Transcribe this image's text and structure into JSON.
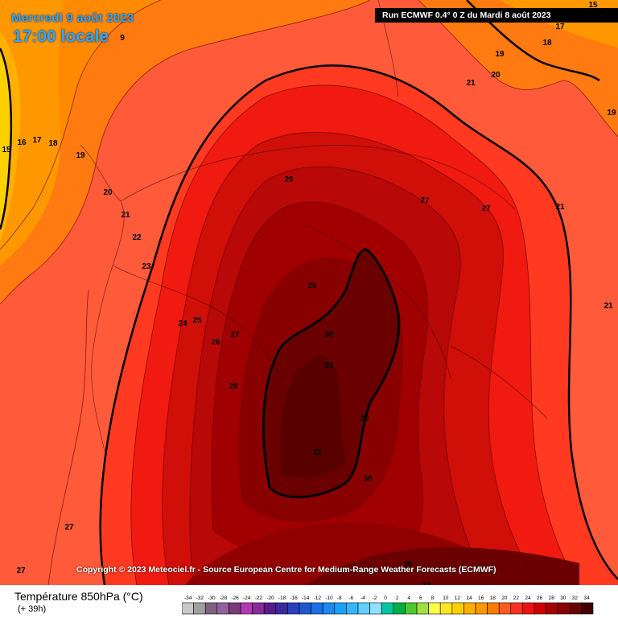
{
  "header": {
    "date": "Mercredi 9 août 2023",
    "time": "17:00 locale",
    "run": "Run ECMWF 0.4° 0 Z du Mardi 8 août 2023"
  },
  "footer": {
    "copyright": "Copyright © 2023 Meteociel.fr - Source European Centre for Medium-Range Weather Forecasts (ECMWF)",
    "parameter": "Température 850hPa (°C)",
    "lead_time": "(+ 39h)"
  },
  "scale": {
    "labels": [
      "-34",
      "-32",
      "-30",
      "-28",
      "-26",
      "-24",
      "-22",
      "-20",
      "-18",
      "-16",
      "-14",
      "-12",
      "-10",
      "-8",
      "-6",
      "-4",
      "-2",
      "0",
      "2",
      "4",
      "6",
      "8",
      "10",
      "12",
      "14",
      "16",
      "18",
      "20",
      "22",
      "24",
      "26",
      "28",
      "30",
      "32",
      "34"
    ],
    "colors": [
      "#c8c8c8",
      "#a0a0a0",
      "#806080",
      "#9060a0",
      "#7a3a7a",
      "#b03ab0",
      "#8a2a9a",
      "#5a1a8a",
      "#3a2aa0",
      "#2a40c0",
      "#1a5ad0",
      "#1a6ee8",
      "#1a8af0",
      "#1aa0f8",
      "#30b8ff",
      "#60d0ff",
      "#90e0ff",
      "#00c8a0",
      "#00b040",
      "#50c830",
      "#a0e040",
      "#ffff40",
      "#ffe820",
      "#ffd000",
      "#ffb000",
      "#ff9800",
      "#ff7a00",
      "#ff5a20",
      "#ff3020",
      "#f01010",
      "#d00000",
      "#a80000",
      "#880000",
      "#680000",
      "#400000"
    ]
  },
  "contour_labels": [
    {
      "t": "15",
      "v": "15"
    },
    {
      "t": "16",
      "v": "16"
    },
    {
      "t": "17",
      "v": "17"
    },
    {
      "t": "18",
      "v": "18"
    },
    {
      "t": "19",
      "v": "19"
    },
    {
      "t": "20",
      "v": "20"
    },
    {
      "t": "21",
      "v": "21"
    },
    {
      "t": "22",
      "v": "22"
    },
    {
      "t": "23",
      "v": "23"
    },
    {
      "t": "24",
      "v": "24"
    },
    {
      "t": "25",
      "v": "25"
    },
    {
      "t": "26",
      "v": "26"
    },
    {
      "t": "27",
      "v": "27"
    },
    {
      "t": "28",
      "v": "28"
    },
    {
      "t": "29",
      "v": "29"
    },
    {
      "t": "30",
      "v": "30"
    },
    {
      "t": "31",
      "v": "31"
    },
    {
      "t": "32",
      "v": "32"
    },
    {
      "t": "29",
      "v": "29"
    },
    {
      "t": "27",
      "v": "27"
    },
    {
      "t": "27",
      "v": "27"
    },
    {
      "t": "29",
      "v": "29"
    },
    {
      "t": "30",
      "v": "30"
    },
    {
      "t": "27",
      "v": "27"
    },
    {
      "t": "27",
      "v": "27"
    },
    {
      "t": "30",
      "v": "30"
    },
    {
      "t": "31",
      "v": "31"
    },
    {
      "t": "15",
      "v": "15"
    },
    {
      "t": "17",
      "v": "17"
    },
    {
      "t": "18",
      "v": "18"
    },
    {
      "t": "19",
      "v": "19"
    },
    {
      "t": "20",
      "v": "20"
    },
    {
      "t": "21",
      "v": "21"
    },
    {
      "t": "19",
      "v": "19"
    },
    {
      "t": "21",
      "v": "21"
    },
    {
      "t": "21",
      "v": "21"
    },
    {
      "t": "9",
      "v": "9"
    },
    {
      "t": "30",
      "v": "30"
    }
  ]
}
